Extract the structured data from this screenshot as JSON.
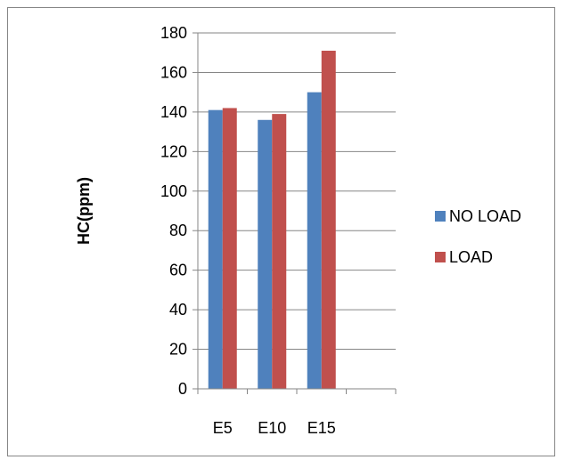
{
  "chart_data": {
    "type": "bar",
    "categories": [
      "E5",
      "E10",
      "E15",
      ""
    ],
    "series": [
      {
        "name": "NO LOAD",
        "values": [
          141,
          136,
          150,
          null
        ],
        "color": "#4f81bd"
      },
      {
        "name": "LOAD",
        "values": [
          142,
          139,
          171,
          null
        ],
        "color": "#c0504d"
      }
    ],
    "ylabel": "HC(ppm)",
    "xlabel": "",
    "title": "",
    "ylim": [
      0,
      180
    ],
    "yticks": [
      0,
      20,
      40,
      60,
      80,
      100,
      120,
      140,
      160,
      180
    ],
    "grid": true,
    "legend_position": "right"
  }
}
